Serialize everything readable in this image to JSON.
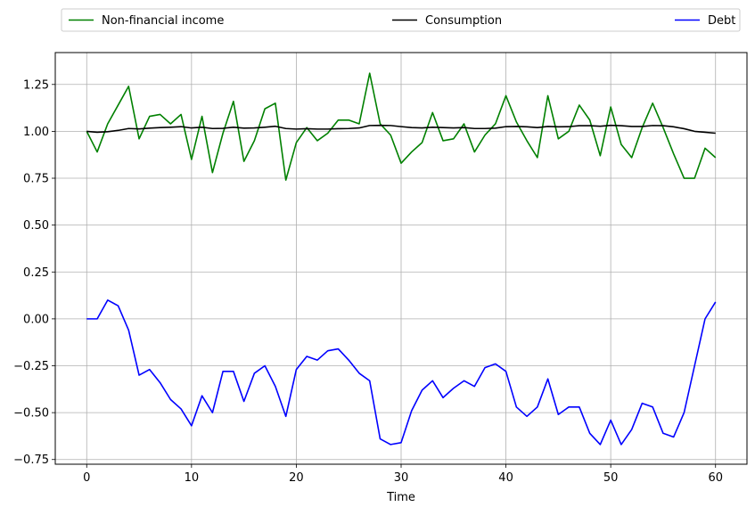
{
  "chart_data": {
    "type": "line",
    "title": "",
    "xlabel": "Time",
    "ylabel": "",
    "xlim": [
      -3,
      63
    ],
    "ylim": [
      -0.775,
      1.42
    ],
    "grid": true,
    "legend_placement": "top, above plot, expanded across width",
    "x_ticks": [
      0,
      10,
      20,
      30,
      40,
      50,
      60
    ],
    "x_tick_labels": [
      "0",
      "10",
      "20",
      "30",
      "40",
      "50",
      "60"
    ],
    "y_ticks": [
      -0.75,
      -0.5,
      -0.25,
      0.0,
      0.25,
      0.5,
      0.75,
      1.0,
      1.25
    ],
    "y_tick_labels": [
      "−0.75",
      "−0.50",
      "−0.25",
      "0.00",
      "0.25",
      "0.50",
      "0.75",
      "1.00",
      "1.25"
    ],
    "series": [
      {
        "name": "Non-financial income",
        "color": "#008000",
        "values": [
          1.0,
          0.89,
          1.04,
          1.14,
          1.24,
          0.96,
          1.08,
          1.09,
          1.04,
          1.09,
          0.85,
          1.08,
          0.78,
          0.99,
          1.16,
          0.84,
          0.95,
          1.12,
          1.15,
          0.74,
          0.94,
          1.02,
          0.95,
          0.99,
          1.06,
          1.06,
          1.04,
          1.31,
          1.04,
          0.98,
          0.83,
          0.89,
          0.94,
          1.1,
          0.95,
          0.96,
          1.04,
          0.89,
          0.98,
          1.04,
          1.19,
          1.05,
          0.95,
          0.86,
          1.19,
          0.96,
          1.0,
          1.14,
          1.06,
          0.87,
          1.13,
          0.93,
          0.86,
          1.02,
          1.15,
          1.02,
          0.88,
          0.75,
          0.75,
          0.91,
          0.86
        ]
      },
      {
        "name": "Consumption",
        "color": "#000000",
        "values": [
          1.0,
          0.995,
          0.998,
          1.005,
          1.015,
          1.013,
          1.017,
          1.02,
          1.022,
          1.025,
          1.018,
          1.022,
          1.015,
          1.016,
          1.022,
          1.017,
          1.018,
          1.022,
          1.027,
          1.015,
          1.012,
          1.014,
          1.012,
          1.012,
          1.014,
          1.015,
          1.018,
          1.031,
          1.032,
          1.031,
          1.025,
          1.02,
          1.018,
          1.022,
          1.02,
          1.018,
          1.02,
          1.015,
          1.015,
          1.017,
          1.025,
          1.026,
          1.024,
          1.02,
          1.026,
          1.024,
          1.025,
          1.03,
          1.03,
          1.027,
          1.032,
          1.03,
          1.026,
          1.026,
          1.031,
          1.03,
          1.024,
          1.014,
          1.0,
          0.995,
          0.99
        ]
      },
      {
        "name": "Debt",
        "color": "#0000ff",
        "values": [
          0.0,
          0.0,
          0.1,
          0.07,
          -0.06,
          -0.3,
          -0.27,
          -0.34,
          -0.43,
          -0.48,
          -0.57,
          -0.41,
          -0.5,
          -0.28,
          -0.28,
          -0.44,
          -0.29,
          -0.25,
          -0.36,
          -0.52,
          -0.27,
          -0.2,
          -0.22,
          -0.17,
          -0.16,
          -0.22,
          -0.29,
          -0.33,
          -0.64,
          -0.67,
          -0.66,
          -0.49,
          -0.38,
          -0.33,
          -0.42,
          -0.37,
          -0.33,
          -0.36,
          -0.26,
          -0.24,
          -0.28,
          -0.47,
          -0.52,
          -0.47,
          -0.32,
          -0.51,
          -0.47,
          -0.47,
          -0.61,
          -0.67,
          -0.54,
          -0.67,
          -0.59,
          -0.45,
          -0.47,
          -0.61,
          -0.63,
          -0.5,
          -0.25,
          0.0,
          0.09
        ]
      }
    ]
  }
}
